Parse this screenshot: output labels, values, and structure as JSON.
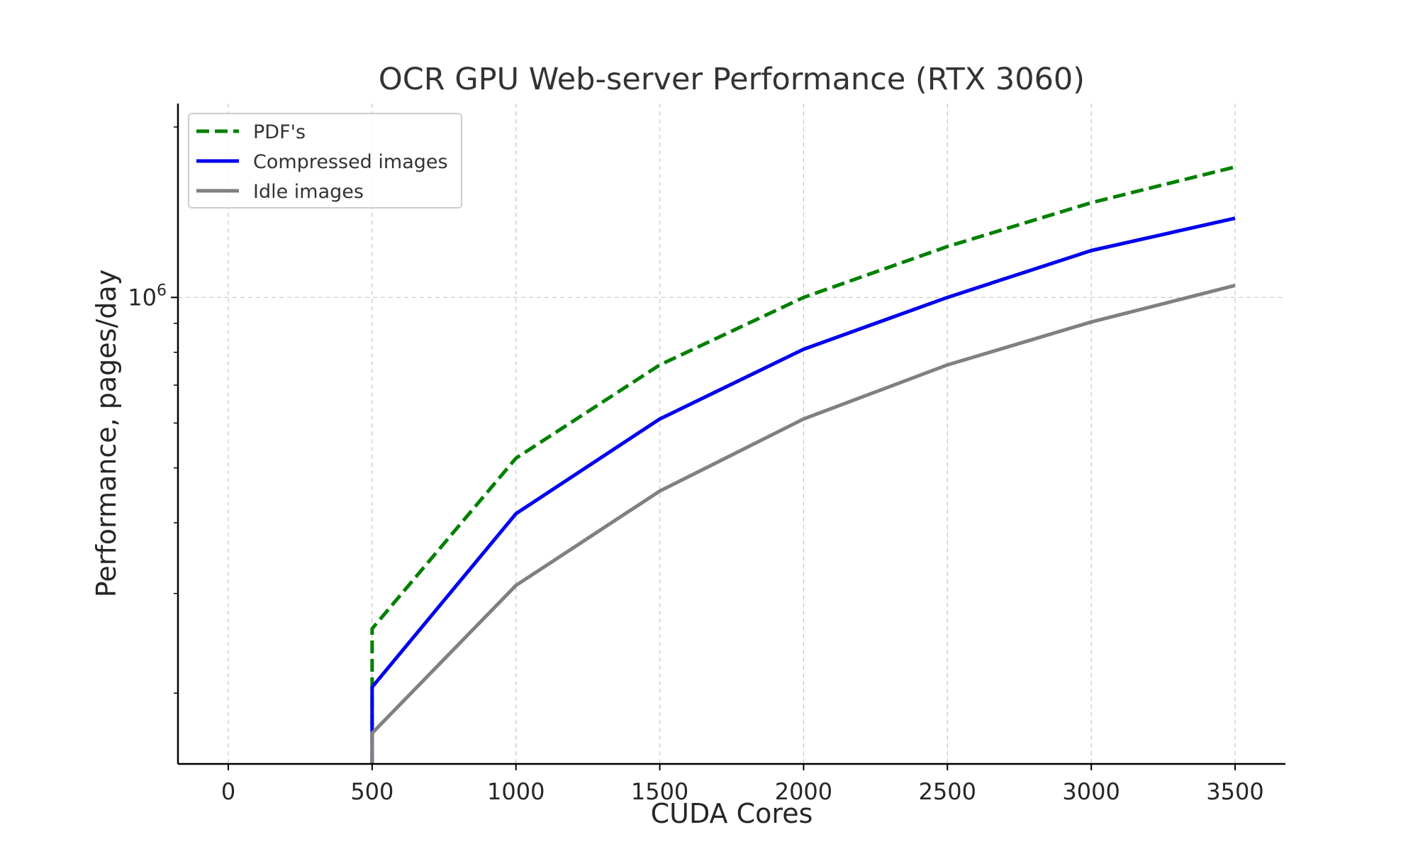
{
  "chart_data": {
    "type": "line",
    "title": "OCR GPU Web-server Performance (RTX 3060)",
    "xlabel": "CUDA Cores",
    "ylabel": "Performance, pages/day",
    "x_scale": "linear",
    "y_scale": "log",
    "xlim": [
      -175,
      3675
    ],
    "ylim": [
      150000,
      2200000
    ],
    "x_ticks": [
      {
        "value": 0,
        "label": "0"
      },
      {
        "value": 500,
        "label": "500"
      },
      {
        "value": 1000,
        "label": "1000"
      },
      {
        "value": 1500,
        "label": "1500"
      },
      {
        "value": 2000,
        "label": "2000"
      },
      {
        "value": 2500,
        "label": "2500"
      },
      {
        "value": 3000,
        "label": "3000"
      },
      {
        "value": 3500,
        "label": "3500"
      }
    ],
    "y_major_ticks": [
      {
        "value": 1000000,
        "base": "10",
        "exponent": "6"
      }
    ],
    "y_minor_ticks": [
      200000,
      300000,
      400000,
      500000,
      600000,
      700000,
      800000,
      900000,
      2000000
    ],
    "grid": true,
    "legend_position": "top-left",
    "series": [
      {
        "name": "PDF's",
        "color": "#008000",
        "dash": "dashed",
        "x": [
          500,
          500,
          1000,
          1500,
          2000,
          2500,
          3000,
          3500
        ],
        "y": [
          150000,
          260000,
          520000,
          760000,
          1000000,
          1230000,
          1470000,
          1700000
        ]
      },
      {
        "name": "Compressed images",
        "color": "#0000ee",
        "dash": "solid",
        "x": [
          500,
          500,
          1000,
          1500,
          2000,
          2500,
          3000,
          3500
        ],
        "y": [
          150000,
          205000,
          415000,
          610000,
          810000,
          1000000,
          1210000,
          1380000
        ]
      },
      {
        "name": "Idle images",
        "color": "#808080",
        "dash": "solid",
        "x": [
          500,
          500,
          1000,
          1500,
          2000,
          2500,
          3000,
          3500
        ],
        "y": [
          150000,
          170000,
          310000,
          455000,
          610000,
          760000,
          905000,
          1050000
        ]
      }
    ]
  }
}
